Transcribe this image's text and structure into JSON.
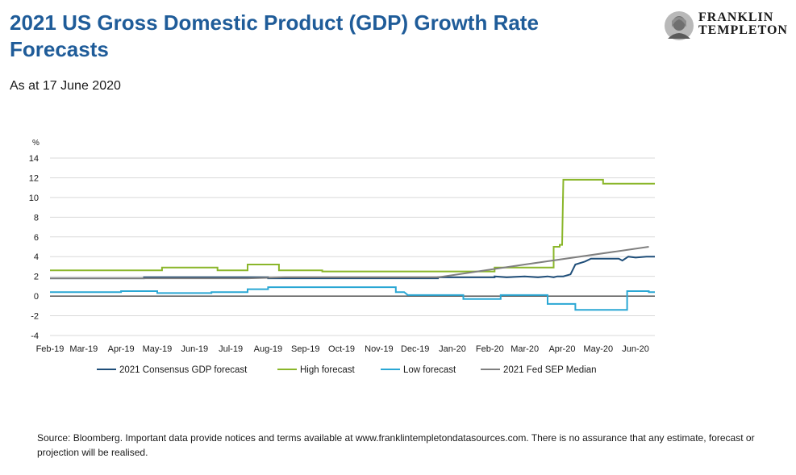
{
  "header": {
    "title": "2021 US Gross Domestic Product (GDP) Growth Rate Forecasts",
    "subtitle": "As at 17 June 2020"
  },
  "logo": {
    "line1": "FRANKLIN",
    "line2": "TEMPLETON",
    "icon": "benjamin-franklin-portrait-icon"
  },
  "footer": {
    "source": "Source: Bloomberg. Important data provide notices and terms available at www.franklintempletondatasources.com. There is no assurance that any estimate, forecast or projection will be realised."
  },
  "chart_data": {
    "type": "line",
    "ylabel": "%",
    "ylim": [
      -4,
      14
    ],
    "yticks": [
      -4,
      -2,
      0,
      2,
      4,
      6,
      8,
      10,
      12,
      14
    ],
    "xlim": [
      "2019-02-01",
      "2020-06-17"
    ],
    "xticks": [
      "Feb-19",
      "Mar-19",
      "Apr-19",
      "May-19",
      "Jun-19",
      "Jul-19",
      "Aug-19",
      "Sep-19",
      "Oct-19",
      "Nov-19",
      "Dec-19",
      "Jan-20",
      "Feb-20",
      "Mar-20",
      "Apr-20",
      "May-20",
      "Jun-20"
    ],
    "grid": "horizontal",
    "legend": "bottom",
    "series": [
      {
        "name": "2021 Consensus GDP forecast",
        "color": "#1f4e79",
        "step": true,
        "points": [
          [
            "2019-02-01",
            1.8
          ],
          [
            "2019-04-20",
            1.8
          ],
          [
            "2019-04-20",
            1.9
          ],
          [
            "2019-08-01",
            1.9
          ],
          [
            "2019-08-01",
            1.8
          ],
          [
            "2019-12-20",
            1.8
          ],
          [
            "2019-12-20",
            1.9
          ],
          [
            "2020-02-05",
            1.9
          ],
          [
            "2020-02-05",
            2.0
          ],
          [
            "2020-02-15",
            1.9
          ],
          [
            "2020-03-01",
            2.0
          ],
          [
            "2020-03-12",
            1.9
          ],
          [
            "2020-03-20",
            2.0
          ],
          [
            "2020-03-25",
            1.9
          ],
          [
            "2020-03-28",
            2.0
          ],
          [
            "2020-04-02",
            2.0
          ],
          [
            "2020-04-08",
            2.2
          ],
          [
            "2020-04-12",
            3.2
          ],
          [
            "2020-04-20",
            3.5
          ],
          [
            "2020-04-25",
            3.8
          ],
          [
            "2020-05-18",
            3.8
          ],
          [
            "2020-05-21",
            3.6
          ],
          [
            "2020-05-26",
            4.0
          ],
          [
            "2020-06-01",
            3.9
          ],
          [
            "2020-06-10",
            4.0
          ],
          [
            "2020-06-17",
            4.0
          ]
        ]
      },
      {
        "name": "High forecast",
        "color": "#8ab62a",
        "step": true,
        "points": [
          [
            "2019-02-01",
            2.6
          ],
          [
            "2019-05-05",
            2.6
          ],
          [
            "2019-05-05",
            2.9
          ],
          [
            "2019-06-20",
            2.9
          ],
          [
            "2019-06-20",
            2.6
          ],
          [
            "2019-07-15",
            2.6
          ],
          [
            "2019-07-15",
            3.2
          ],
          [
            "2019-08-10",
            3.2
          ],
          [
            "2019-08-10",
            2.6
          ],
          [
            "2019-09-15",
            2.6
          ],
          [
            "2019-09-15",
            2.5
          ],
          [
            "2020-02-05",
            2.5
          ],
          [
            "2020-02-05",
            2.9
          ],
          [
            "2020-03-25",
            2.9
          ],
          [
            "2020-03-25",
            5.0
          ],
          [
            "2020-03-30",
            5.0
          ],
          [
            "2020-03-30",
            5.2
          ],
          [
            "2020-04-01",
            5.2
          ],
          [
            "2020-04-02",
            11.8
          ],
          [
            "2020-05-05",
            11.8
          ],
          [
            "2020-05-05",
            11.4
          ],
          [
            "2020-06-17",
            11.4
          ]
        ]
      },
      {
        "name": "Low forecast",
        "color": "#2aa7d4",
        "step": true,
        "points": [
          [
            "2019-02-01",
            0.4
          ],
          [
            "2019-04-01",
            0.4
          ],
          [
            "2019-04-01",
            0.5
          ],
          [
            "2019-05-01",
            0.5
          ],
          [
            "2019-05-01",
            0.3
          ],
          [
            "2019-06-15",
            0.3
          ],
          [
            "2019-06-15",
            0.4
          ],
          [
            "2019-07-15",
            0.4
          ],
          [
            "2019-07-15",
            0.7
          ],
          [
            "2019-08-01",
            0.7
          ],
          [
            "2019-08-01",
            0.9
          ],
          [
            "2019-11-15",
            0.9
          ],
          [
            "2019-11-15",
            0.4
          ],
          [
            "2019-11-22",
            0.4
          ],
          [
            "2019-11-25",
            0.1
          ],
          [
            "2020-01-10",
            0.1
          ],
          [
            "2020-01-10",
            -0.3
          ],
          [
            "2020-02-10",
            -0.3
          ],
          [
            "2020-02-10",
            0.1
          ],
          [
            "2020-03-20",
            0.1
          ],
          [
            "2020-03-20",
            -0.8
          ],
          [
            "2020-04-12",
            -0.8
          ],
          [
            "2020-04-12",
            -1.4
          ],
          [
            "2020-05-25",
            -1.4
          ],
          [
            "2020-05-25",
            0.5
          ],
          [
            "2020-06-12",
            0.5
          ],
          [
            "2020-06-12",
            0.4
          ],
          [
            "2020-06-17",
            0.4
          ]
        ]
      },
      {
        "name": "2021 Fed SEP Median",
        "color": "#7f7f7f",
        "step": false,
        "points": [
          [
            "2019-02-01",
            1.8
          ],
          [
            "2019-07-15",
            1.8
          ],
          [
            "2019-08-15",
            1.9
          ],
          [
            "2019-12-20",
            1.9
          ],
          [
            "2020-03-01",
            3.2
          ],
          [
            "2020-06-12",
            5.0
          ]
        ]
      }
    ]
  }
}
